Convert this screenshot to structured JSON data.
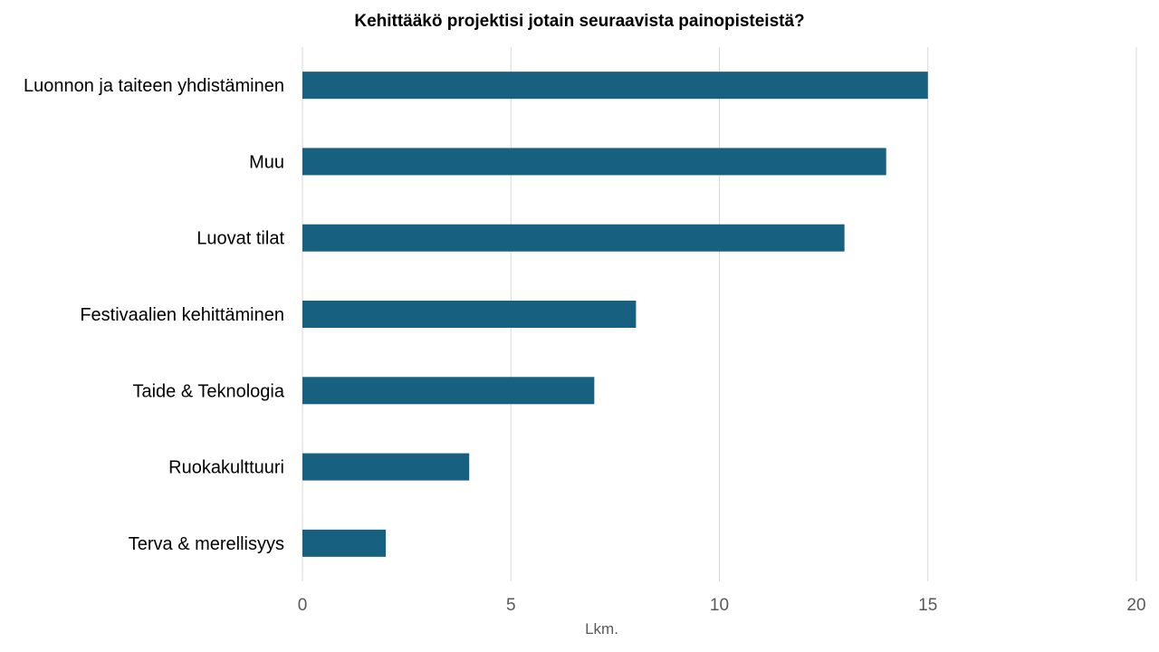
{
  "chart_data": {
    "type": "bar",
    "orientation": "horizontal",
    "title": "Kehittääkö projektisi jotain seuraavista painopisteistä?",
    "xlabel": "Lkm.",
    "ylabel": "",
    "categories": [
      "Luonnon ja taiteen yhdistäminen",
      "Muu",
      "Luovat tilat",
      "Festivaalien kehittäminen",
      "Taide & Teknologia",
      "Ruokakulttuuri",
      "Terva & merellisyys"
    ],
    "values": [
      15,
      14,
      13,
      8,
      7,
      4,
      2
    ],
    "xlim": [
      0,
      20
    ],
    "xticks": [
      0,
      5,
      10,
      15,
      20
    ],
    "grid": "vertical",
    "legend": "none",
    "bar_color": "#17607f",
    "grid_color": "#d9d9d9"
  }
}
